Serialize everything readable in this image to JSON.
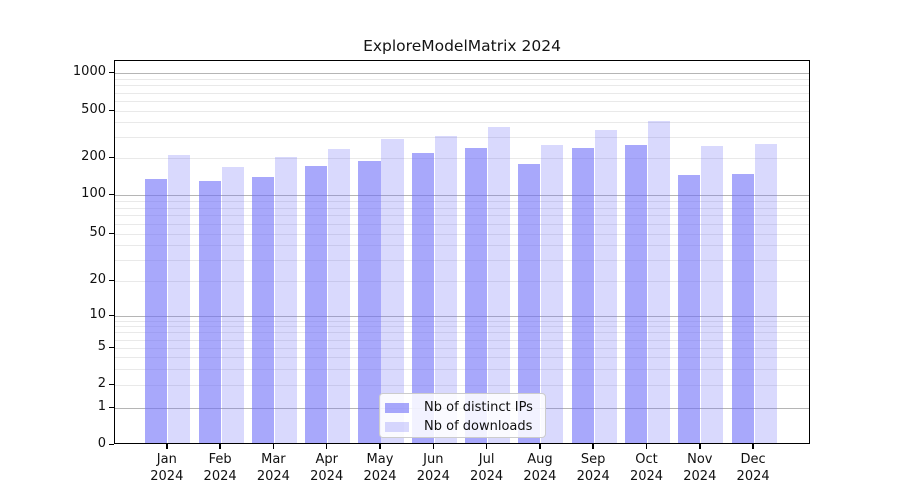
{
  "title": "ExploreModelMatrix 2024",
  "colors": {
    "ips_bar": "rgba(110,110,248,0.60)",
    "downloads_bar": "rgba(110,110,248,0.26)",
    "grid_major": "#b5b5b5",
    "grid_minor": "#e9e9e9",
    "axis": "#000000"
  },
  "chart_data": {
    "type": "bar",
    "scale": "symlog",
    "title": "ExploreModelMatrix 2024",
    "categories": [
      "Jan 2024",
      "Feb 2024",
      "Mar 2024",
      "Apr 2024",
      "May 2024",
      "Jun 2024",
      "Jul 2024",
      "Aug 2024",
      "Sep 2024",
      "Oct 2024",
      "Nov 2024",
      "Dec 2024"
    ],
    "series": [
      {
        "name": "Nb of distinct IPs",
        "values": [
          130,
          125,
          136,
          167,
          182,
          212,
          234,
          172,
          232,
          248,
          139,
          143
        ]
      },
      {
        "name": "Nb of downloads",
        "values": [
          204,
          162,
          196,
          230,
          281,
          296,
          351,
          250,
          332,
          395,
          241,
          252
        ]
      }
    ],
    "yticks": [
      0,
      1,
      2,
      5,
      10,
      20,
      50,
      100,
      200,
      500,
      1000
    ],
    "grid_major_at": [
      1,
      10,
      100,
      1000
    ],
    "grid_minor_at": [
      2,
      3,
      4,
      5,
      6,
      7,
      8,
      9,
      20,
      30,
      40,
      50,
      60,
      70,
      80,
      90,
      200,
      300,
      400,
      500,
      600,
      700,
      800,
      900
    ],
    "ylim": [
      0,
      1250
    ],
    "grid": true,
    "legend_position": "lower center"
  }
}
